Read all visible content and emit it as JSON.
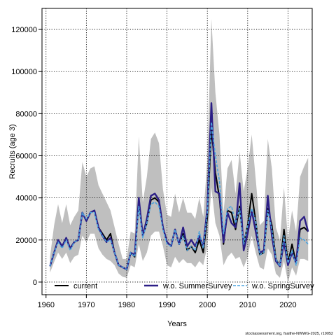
{
  "chart_data": {
    "type": "line",
    "xlabel": "Years",
    "ylabel": "Recruits (age 3)",
    "xlim": [
      1959,
      2026
    ],
    "ylim": [
      -6000,
      130000
    ],
    "x_ticks": [
      1960,
      1970,
      1980,
      1990,
      2000,
      2010,
      2020
    ],
    "y_ticks": [
      0,
      20000,
      40000,
      60000,
      80000,
      100000,
      120000
    ],
    "grid": true,
    "legend_position": "bottom",
    "credit": "stockassessment.org, fsaithe-NWWG-2025, r19052",
    "x": [
      1961,
      1962,
      1963,
      1964,
      1965,
      1966,
      1967,
      1968,
      1969,
      1970,
      1971,
      1972,
      1973,
      1974,
      1975,
      1976,
      1977,
      1978,
      1979,
      1980,
      1981,
      1982,
      1983,
      1984,
      1985,
      1986,
      1987,
      1988,
      1989,
      1990,
      1991,
      1992,
      1993,
      1994,
      1995,
      1996,
      1997,
      1998,
      1999,
      2000,
      2001,
      2002,
      2003,
      2004,
      2005,
      2006,
      2007,
      2008,
      2009,
      2010,
      2011,
      2012,
      2013,
      2014,
      2015,
      2016,
      2017,
      2018,
      2019,
      2020,
      2021,
      2022,
      2023,
      2024,
      2025
    ],
    "band": {
      "color": "#bfbfbf",
      "lower": [
        4500,
        9500,
        14000,
        11000,
        14000,
        9000,
        12000,
        13000,
        22000,
        19000,
        23000,
        23000,
        16000,
        13000,
        11000,
        10000,
        8000,
        4000,
        2500,
        2000,
        8000,
        7000,
        18000,
        10000,
        14000,
        22000,
        24000,
        24000,
        17000,
        8000,
        7000,
        12000,
        9000,
        11000,
        9000,
        9000,
        7000,
        10000,
        8000,
        17000,
        45000,
        28000,
        22000,
        8000,
        12000,
        14000,
        11000,
        12000,
        7000,
        12000,
        22000,
        14000,
        7000,
        6000,
        16000,
        13000,
        4000,
        2000,
        10000,
        0,
        7000,
        3000,
        11000,
        11000,
        10000
      ],
      "upper": [
        12000,
        27000,
        37000,
        28000,
        37000,
        27000,
        31000,
        34000,
        57000,
        50000,
        54000,
        55000,
        46000,
        42000,
        38000,
        34000,
        26000,
        18000,
        11000,
        11000,
        24000,
        23000,
        69000,
        38000,
        50000,
        68000,
        71000,
        66000,
        44000,
        32000,
        31000,
        42000,
        33000,
        40000,
        33000,
        33000,
        30000,
        40000,
        31000,
        58000,
        125000,
        90000,
        70000,
        33000,
        54000,
        58000,
        42000,
        62000,
        43000,
        54000,
        70000,
        49000,
        27000,
        29000,
        68000,
        54000,
        26000,
        20000,
        45000,
        20000,
        34000,
        24000,
        50000,
        55000,
        59000
      ]
    },
    "series": [
      {
        "name": "current",
        "color": "#000000",
        "dash": "solid",
        "width": 2,
        "values": [
          7500,
          14000,
          20000,
          17000,
          21000,
          16000,
          19000,
          20000,
          33000,
          29000,
          33000,
          34000,
          26000,
          23000,
          20000,
          23000,
          14000,
          8000,
          7000,
          6000,
          14000,
          12000,
          38000,
          22000,
          28000,
          39000,
          40000,
          38000,
          26000,
          19000,
          17000,
          25000,
          18000,
          23000,
          15000,
          17000,
          14000,
          20000,
          14000,
          31000,
          73000,
          52000,
          40000,
          18000,
          34000,
          33000,
          25000,
          36000,
          18000,
          27000,
          42000,
          29000,
          13000,
          14000,
          35000,
          27000,
          11000,
          7500,
          25000,
          9000,
          18000,
          9000,
          25000,
          26000,
          24000
        ]
      },
      {
        "name": "w.o. SummerSurvey",
        "color": "#2b1e86",
        "dash": "solid",
        "width": 2.4,
        "values": [
          7500,
          14000,
          20000,
          17000,
          21000,
          16000,
          19000,
          20000,
          33000,
          29000,
          33000,
          34000,
          26000,
          22000,
          19000,
          21000,
          14000,
          8000,
          7000,
          6000,
          14000,
          13000,
          40000,
          22000,
          30000,
          41000,
          42000,
          39000,
          26000,
          19000,
          17000,
          25000,
          18000,
          26000,
          17000,
          20000,
          17000,
          22000,
          17000,
          35000,
          85000,
          43000,
          42000,
          19000,
          33000,
          28000,
          26000,
          47000,
          15000,
          23000,
          34000,
          24000,
          14000,
          15000,
          41000,
          22000,
          10000,
          7500,
          19000,
          8000,
          14000,
          9000,
          29000,
          31000,
          24000
        ]
      },
      {
        "name": "w.o. SpringSurvey",
        "color": "#4aa3df",
        "dash": "dashed",
        "width": 1.6,
        "values": [
          7500,
          14000,
          19000,
          16000,
          20000,
          15000,
          19000,
          20000,
          33000,
          30000,
          33000,
          33000,
          25000,
          22000,
          19000,
          20000,
          14000,
          8000,
          7000,
          6000,
          14000,
          12000,
          36000,
          21000,
          28000,
          37000,
          38000,
          36000,
          25000,
          18000,
          17000,
          25000,
          18000,
          22000,
          15000,
          17000,
          15000,
          24000,
          16000,
          33000,
          76000,
          60000,
          48000,
          23000,
          35000,
          36000,
          28000,
          35000,
          18000,
          27000,
          35000,
          29000,
          13000,
          14000,
          34000,
          25000,
          11000,
          7500,
          22000,
          9000,
          15000,
          8000,
          21000,
          20000,
          18000
        ]
      }
    ]
  }
}
